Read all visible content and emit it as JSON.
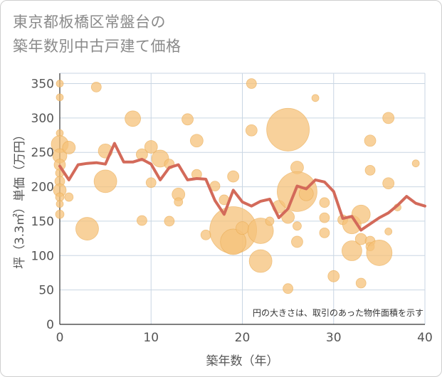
{
  "chart_data": {
    "type": "scatter",
    "title_line1": "東京都板橋区常盤台の",
    "title_line2": "築年数別中古戸建て価格",
    "xlabel": "築年数（年）",
    "ylabel": "坪（3.3㎡）単価（万円）",
    "note": "円の大きさは、取引のあった物件面積を示す",
    "xlim": [
      0,
      40
    ],
    "ylim": [
      0,
      365
    ],
    "x_ticks": [
      0,
      10,
      20,
      30,
      40
    ],
    "y_ticks": [
      0,
      50,
      100,
      150,
      200,
      250,
      300,
      350
    ],
    "grid": true,
    "colors": {
      "bubble": "#f5c27a",
      "bubble_edge": "#e8a94e",
      "line": "#d36a5a",
      "grid": "#c9d6e3",
      "plot_bg": "#ffffff"
    },
    "bubbles": [
      {
        "x": 0,
        "y": 350,
        "s": 5
      },
      {
        "x": 0,
        "y": 330,
        "s": 5
      },
      {
        "x": 0,
        "y": 278,
        "s": 5
      },
      {
        "x": 0,
        "y": 262,
        "s": 12
      },
      {
        "x": 0,
        "y": 245,
        "s": 10
      },
      {
        "x": 0,
        "y": 232,
        "s": 8
      },
      {
        "x": 0,
        "y": 220,
        "s": 6
      },
      {
        "x": 0,
        "y": 208,
        "s": 7
      },
      {
        "x": 0,
        "y": 195,
        "s": 9
      },
      {
        "x": 0,
        "y": 185,
        "s": 6
      },
      {
        "x": 0,
        "y": 175,
        "s": 5
      },
      {
        "x": 0,
        "y": 160,
        "s": 6
      },
      {
        "x": 1,
        "y": 257,
        "s": 9
      },
      {
        "x": 1,
        "y": 185,
        "s": 6
      },
      {
        "x": 3,
        "y": 139,
        "s": 16
      },
      {
        "x": 4,
        "y": 345,
        "s": 7
      },
      {
        "x": 5,
        "y": 252,
        "s": 10
      },
      {
        "x": 5,
        "y": 208,
        "s": 16
      },
      {
        "x": 8,
        "y": 299,
        "s": 11
      },
      {
        "x": 9,
        "y": 247,
        "s": 8
      },
      {
        "x": 9,
        "y": 151,
        "s": 7
      },
      {
        "x": 10,
        "y": 258,
        "s": 9
      },
      {
        "x": 10,
        "y": 206,
        "s": 7
      },
      {
        "x": 11,
        "y": 241,
        "s": 12
      },
      {
        "x": 12,
        "y": 233,
        "s": 7
      },
      {
        "x": 12,
        "y": 150,
        "s": 7
      },
      {
        "x": 13,
        "y": 189,
        "s": 9
      },
      {
        "x": 13,
        "y": 178,
        "s": 6
      },
      {
        "x": 14,
        "y": 298,
        "s": 8
      },
      {
        "x": 15,
        "y": 267,
        "s": 9
      },
      {
        "x": 15,
        "y": 218,
        "s": 7
      },
      {
        "x": 16,
        "y": 130,
        "s": 7
      },
      {
        "x": 17,
        "y": 201,
        "s": 7
      },
      {
        "x": 18,
        "y": 181,
        "s": 7
      },
      {
        "x": 19,
        "y": 215,
        "s": 8
      },
      {
        "x": 19,
        "y": 137,
        "s": 33
      },
      {
        "x": 19,
        "y": 120,
        "s": 18
      },
      {
        "x": 20,
        "y": 140,
        "s": 9
      },
      {
        "x": 21,
        "y": 350,
        "s": 7
      },
      {
        "x": 21,
        "y": 282,
        "s": 8
      },
      {
        "x": 22,
        "y": 136,
        "s": 18
      },
      {
        "x": 22,
        "y": 92,
        "s": 16
      },
      {
        "x": 23,
        "y": 150,
        "s": 6
      },
      {
        "x": 24,
        "y": 171,
        "s": 9
      },
      {
        "x": 25,
        "y": 283,
        "s": 30
      },
      {
        "x": 25,
        "y": 156,
        "s": 9
      },
      {
        "x": 25,
        "y": 52,
        "s": 7
      },
      {
        "x": 26,
        "y": 228,
        "s": 9
      },
      {
        "x": 26,
        "y": 193,
        "s": 28
      },
      {
        "x": 26,
        "y": 143,
        "s": 6
      },
      {
        "x": 26,
        "y": 120,
        "s": 8
      },
      {
        "x": 27,
        "y": 190,
        "s": 10
      },
      {
        "x": 28,
        "y": 329,
        "s": 5
      },
      {
        "x": 29,
        "y": 177,
        "s": 7
      },
      {
        "x": 29,
        "y": 155,
        "s": 7
      },
      {
        "x": 29,
        "y": 133,
        "s": 7
      },
      {
        "x": 30,
        "y": 70,
        "s": 8
      },
      {
        "x": 31,
        "y": 152,
        "s": 7
      },
      {
        "x": 32,
        "y": 145,
        "s": 13
      },
      {
        "x": 32,
        "y": 107,
        "s": 14
      },
      {
        "x": 33,
        "y": 160,
        "s": 13
      },
      {
        "x": 33,
        "y": 124,
        "s": 8
      },
      {
        "x": 33,
        "y": 60,
        "s": 7
      },
      {
        "x": 34,
        "y": 267,
        "s": 8
      },
      {
        "x": 34,
        "y": 224,
        "s": 7
      },
      {
        "x": 34,
        "y": 121,
        "s": 7
      },
      {
        "x": 34,
        "y": 113,
        "s": 6
      },
      {
        "x": 35,
        "y": 104,
        "s": 18
      },
      {
        "x": 36,
        "y": 300,
        "s": 8
      },
      {
        "x": 36,
        "y": 205,
        "s": 8
      },
      {
        "x": 36,
        "y": 135,
        "s": 5
      },
      {
        "x": 37,
        "y": 170,
        "s": 5
      },
      {
        "x": 39,
        "y": 234,
        "s": 5
      }
    ],
    "series": [
      {
        "x": [
          0,
          1,
          2,
          3,
          4,
          5,
          6,
          7,
          8,
          9,
          10,
          11,
          12,
          13,
          14,
          15,
          16,
          17,
          18,
          19,
          20,
          21,
          22,
          23,
          24,
          25,
          26,
          27,
          28,
          29,
          30,
          31,
          32,
          33,
          34,
          35,
          36,
          37,
          38,
          39,
          40
        ],
        "values": [
          230,
          210,
          232,
          234,
          235,
          233,
          263,
          236,
          236,
          240,
          233,
          210,
          228,
          232,
          210,
          212,
          211,
          180,
          160,
          195,
          178,
          172,
          179,
          182,
          155,
          168,
          201,
          197,
          210,
          207,
          193,
          154,
          157,
          137,
          146,
          155,
          162,
          173,
          186,
          176,
          172
        ]
      }
    ]
  }
}
